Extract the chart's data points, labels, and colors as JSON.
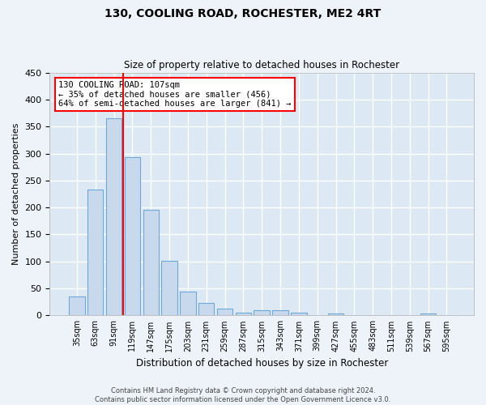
{
  "title": "130, COOLING ROAD, ROCHESTER, ME2 4RT",
  "subtitle": "Size of property relative to detached houses in Rochester",
  "xlabel": "Distribution of detached houses by size in Rochester",
  "ylabel": "Number of detached properties",
  "bar_color": "#c8d9ee",
  "bar_edge_color": "#6fa8d6",
  "background_color": "#dce9f5",
  "grid_color": "#ffffff",
  "fig_background": "#eef3f9",
  "categories": [
    "35sqm",
    "63sqm",
    "91sqm",
    "119sqm",
    "147sqm",
    "175sqm",
    "203sqm",
    "231sqm",
    "259sqm",
    "287sqm",
    "315sqm",
    "343sqm",
    "371sqm",
    "399sqm",
    "427sqm",
    "455sqm",
    "483sqm",
    "511sqm",
    "539sqm",
    "567sqm",
    "595sqm"
  ],
  "values": [
    35,
    233,
    365,
    293,
    196,
    101,
    44,
    23,
    13,
    5,
    9,
    9,
    5,
    0,
    3,
    0,
    0,
    0,
    0,
    3,
    0
  ],
  "ylim": [
    0,
    450
  ],
  "yticks": [
    0,
    50,
    100,
    150,
    200,
    250,
    300,
    350,
    400,
    450
  ],
  "red_line_index": 2.5,
  "annotation_line1": "130 COOLING ROAD: 107sqm",
  "annotation_line2": "← 35% of detached houses are smaller (456)",
  "annotation_line3": "64% of semi-detached houses are larger (841) →",
  "footer_line1": "Contains HM Land Registry data © Crown copyright and database right 2024.",
  "footer_line2": "Contains public sector information licensed under the Open Government Licence v3.0."
}
